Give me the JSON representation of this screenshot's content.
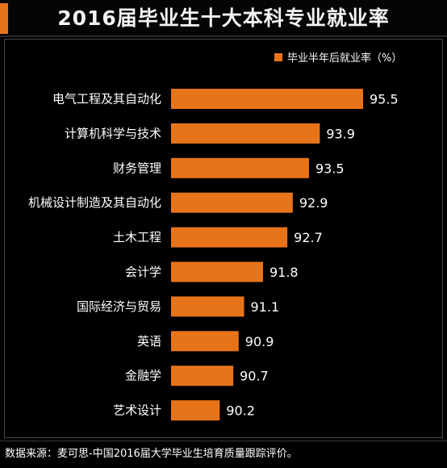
{
  "title": "2016届毕业生十大本科专业就业率",
  "source_note": "数据来源：麦可思-中国2016届大学毕业生培育质量跟踪评价。",
  "colors": {
    "bar": "#e8741a",
    "background": "#000000",
    "text": "#ffffff"
  },
  "chart_data": {
    "type": "bar",
    "orientation": "horizontal",
    "title": "2016届毕业生十大本科专业就业率",
    "legend": {
      "position": "top-right"
    },
    "series": [
      {
        "name": "毕业半年后就业率（%）",
        "values": [
          95.5,
          93.9,
          93.5,
          92.9,
          92.7,
          91.8,
          91.1,
          90.9,
          90.7,
          90.2
        ]
      }
    ],
    "categories": [
      "电气工程及其自动化",
      "计算机科学与技术",
      "财务管理",
      "机械设计制造及其自动化",
      "土木工程",
      "会计学",
      "国际经济与贸易",
      "英语",
      "金融学",
      "艺术设计"
    ],
    "grid": false,
    "axis_visible": false
  }
}
